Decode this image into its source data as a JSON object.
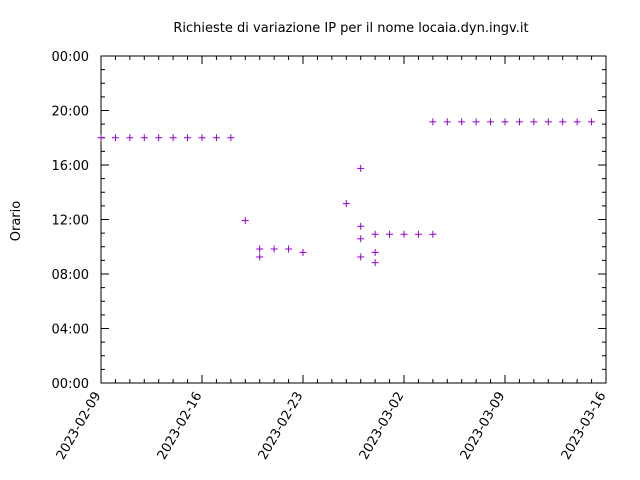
{
  "chart_data": {
    "type": "scatter",
    "title": "Richieste di variazione IP per il nome locaia.dyn.ingv.it",
    "xlabel": "",
    "ylabel": "Orario",
    "x_axis": {
      "min": "2023-02-09",
      "max": "2023-03-16",
      "tick_labels": [
        "2023-02-09",
        "2023-02-16",
        "2023-02-23",
        "2023-03-02",
        "2023-03-09",
        "2023-03-16"
      ]
    },
    "y_axis": {
      "min": "00:00",
      "max": "24:00",
      "tick_labels": [
        "00:00",
        "04:00",
        "08:00",
        "12:00",
        "16:00",
        "20:00",
        "00:00"
      ]
    },
    "grid": false,
    "marker": "+",
    "marker_color": "#9400d3",
    "series": [
      {
        "points": [
          {
            "x": "2023-02-09",
            "y": "18:00"
          },
          {
            "x": "2023-02-10",
            "y": "18:00"
          },
          {
            "x": "2023-02-11",
            "y": "18:00"
          },
          {
            "x": "2023-02-12",
            "y": "18:00"
          },
          {
            "x": "2023-02-13",
            "y": "18:00"
          },
          {
            "x": "2023-02-14",
            "y": "18:00"
          },
          {
            "x": "2023-02-15",
            "y": "18:00"
          },
          {
            "x": "2023-02-16",
            "y": "18:00"
          },
          {
            "x": "2023-02-17",
            "y": "18:00"
          },
          {
            "x": "2023-02-18",
            "y": "18:00"
          },
          {
            "x": "2023-02-19",
            "y": "11:55"
          },
          {
            "x": "2023-02-20",
            "y": "09:50"
          },
          {
            "x": "2023-02-20",
            "y": "09:15"
          },
          {
            "x": "2023-02-21",
            "y": "09:50"
          },
          {
            "x": "2023-02-22",
            "y": "09:50"
          },
          {
            "x": "2023-02-23",
            "y": "09:35"
          },
          {
            "x": "2023-02-26",
            "y": "13:10"
          },
          {
            "x": "2023-02-27",
            "y": "15:45"
          },
          {
            "x": "2023-02-27",
            "y": "11:30"
          },
          {
            "x": "2023-02-27",
            "y": "10:35"
          },
          {
            "x": "2023-02-27",
            "y": "09:15"
          },
          {
            "x": "2023-02-28",
            "y": "10:55"
          },
          {
            "x": "2023-02-28",
            "y": "09:35"
          },
          {
            "x": "2023-02-28",
            "y": "08:50"
          },
          {
            "x": "2023-03-01",
            "y": "10:55"
          },
          {
            "x": "2023-03-02",
            "y": "10:55"
          },
          {
            "x": "2023-03-03",
            "y": "10:55"
          },
          {
            "x": "2023-03-04",
            "y": "10:55"
          },
          {
            "x": "2023-03-04",
            "y": "19:10"
          },
          {
            "x": "2023-03-05",
            "y": "19:10"
          },
          {
            "x": "2023-03-06",
            "y": "19:10"
          },
          {
            "x": "2023-03-07",
            "y": "19:10"
          },
          {
            "x": "2023-03-08",
            "y": "19:10"
          },
          {
            "x": "2023-03-09",
            "y": "19:10"
          },
          {
            "x": "2023-03-10",
            "y": "19:10"
          },
          {
            "x": "2023-03-11",
            "y": "19:10"
          },
          {
            "x": "2023-03-12",
            "y": "19:10"
          },
          {
            "x": "2023-03-13",
            "y": "19:10"
          },
          {
            "x": "2023-03-14",
            "y": "19:10"
          },
          {
            "x": "2023-03-15",
            "y": "19:10"
          }
        ]
      }
    ]
  }
}
